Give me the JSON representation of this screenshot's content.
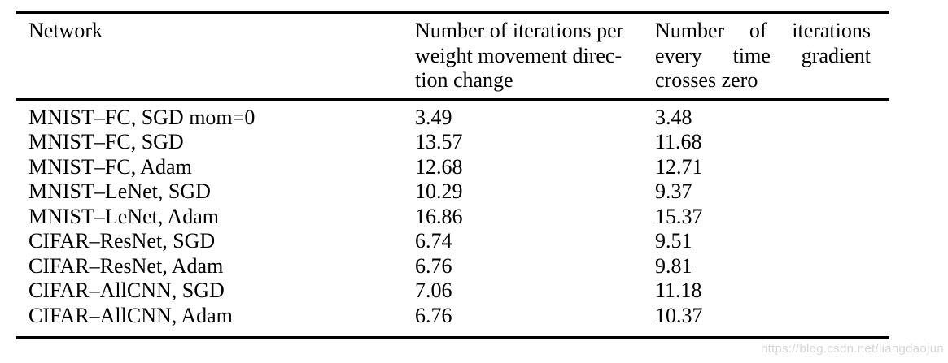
{
  "table": {
    "header": {
      "col1": "Network",
      "col2_lines": [
        "Number of iterations per",
        "weight movement direc-",
        "tion change"
      ],
      "col3_lines": [
        "Number of iterations",
        "every time gradient",
        "crosses zero"
      ]
    },
    "rows": [
      {
        "network": "MNIST–FC, SGD mom=0",
        "iters_per_direction_change": "3.49",
        "iters_per_zero_crossing": "3.48"
      },
      {
        "network": "MNIST–FC, SGD",
        "iters_per_direction_change": "13.57",
        "iters_per_zero_crossing": "11.68"
      },
      {
        "network": "MNIST–FC, Adam",
        "iters_per_direction_change": "12.68",
        "iters_per_zero_crossing": "12.71"
      },
      {
        "network": "MNIST–LeNet, SGD",
        "iters_per_direction_change": "10.29",
        "iters_per_zero_crossing": "9.37"
      },
      {
        "network": "MNIST–LeNet, Adam",
        "iters_per_direction_change": "16.86",
        "iters_per_zero_crossing": "15.37"
      },
      {
        "network": "CIFAR–ResNet, SGD",
        "iters_per_direction_change": "6.74",
        "iters_per_zero_crossing": "9.51"
      },
      {
        "network": "CIFAR–ResNet, Adam",
        "iters_per_direction_change": "6.76",
        "iters_per_zero_crossing": "9.81"
      },
      {
        "network": "CIFAR–AllCNN, SGD",
        "iters_per_direction_change": "7.06",
        "iters_per_zero_crossing": "11.18"
      },
      {
        "network": "CIFAR–AllCNN, Adam",
        "iters_per_direction_change": "6.76",
        "iters_per_zero_crossing": "10.37"
      }
    ]
  },
  "watermark": {
    "text": "https://blog.csdn.net/liangdaojun",
    "color": "#d6d6d6"
  },
  "colors": {
    "background": "#ffffff",
    "text": "#000000",
    "rule": "#000000"
  }
}
